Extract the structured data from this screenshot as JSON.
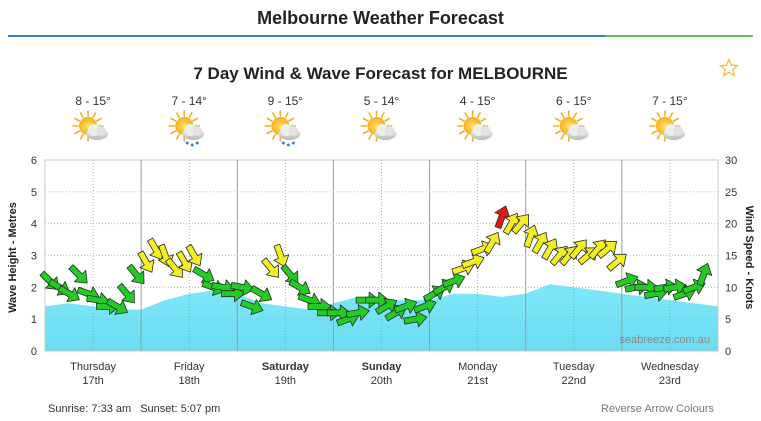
{
  "header": {
    "title": "Melbourne Weather Forecast"
  },
  "footer": {
    "sunrise": "Sunrise: 7:33 am",
    "sunset": "Sunset: 5:07 pm",
    "reverse_link": "Reverse Arrow Colours"
  },
  "chart_data": {
    "type": "area",
    "title": "7 Day Wind & Wave Forecast for MELBOURNE",
    "ylabel": "Wave Height - Metres",
    "y2label": "Wind Speed - Knots",
    "ylim": [
      0,
      6
    ],
    "y2lim": [
      0,
      30
    ],
    "yticks": [
      "0",
      "1",
      "2",
      "3",
      "4",
      "5",
      "6"
    ],
    "y2ticks": [
      "0",
      "5",
      "10",
      "15",
      "20",
      "25",
      "30"
    ],
    "watermark": "seabreeze.com.au",
    "grid": true,
    "days": [
      {
        "day": "Thursday",
        "date": "17th",
        "bold": false,
        "temp": "8 - 15°",
        "icon": "partly-cloudy-icon"
      },
      {
        "day": "Friday",
        "date": "18th",
        "bold": false,
        "temp": "7 - 14°",
        "icon": "cloudy-rain-icon"
      },
      {
        "day": "Saturday",
        "date": "19th",
        "bold": true,
        "temp": "9 - 15°",
        "icon": "cloudy-rain-icon"
      },
      {
        "day": "Sunday",
        "date": "20th",
        "bold": true,
        "temp": "5 - 14°",
        "icon": "partly-cloudy-icon"
      },
      {
        "day": "Monday",
        "date": "21st",
        "bold": false,
        "temp": "4 - 15°",
        "icon": "partly-cloudy-icon"
      },
      {
        "day": "Tuesday",
        "date": "22nd",
        "bold": false,
        "temp": "6 - 15°",
        "icon": "partly-cloudy-icon"
      },
      {
        "day": "Wednesday",
        "date": "23rd",
        "bold": false,
        "temp": "7 - 15°",
        "icon": "partly-cloudy-icon"
      }
    ],
    "wave_series": {
      "name": "Wave Height",
      "x": [
        0,
        0.25,
        0.5,
        0.75,
        1,
        1.25,
        1.5,
        1.75,
        2,
        2.25,
        2.5,
        2.75,
        3,
        3.25,
        3.5,
        3.75,
        4,
        4.25,
        4.5,
        4.75,
        5,
        5.25,
        5.5,
        5.75,
        6,
        6.25,
        6.5,
        6.75,
        7
      ],
      "values": [
        1.4,
        1.5,
        1.4,
        1.3,
        1.3,
        1.6,
        1.8,
        1.9,
        1.8,
        1.5,
        1.4,
        1.3,
        1.5,
        1.7,
        1.6,
        1.6,
        1.6,
        1.8,
        1.8,
        1.7,
        1.8,
        2.1,
        2.0,
        1.9,
        1.8,
        1.7,
        1.6,
        1.5,
        1.4
      ]
    },
    "wind_series": {
      "name": "Wind Speed",
      "unit": "knots",
      "x": [
        0.05,
        0.15,
        0.25,
        0.35,
        0.45,
        0.55,
        0.65,
        0.75,
        0.85,
        0.95,
        1.05,
        1.15,
        1.25,
        1.35,
        1.45,
        1.55,
        1.65,
        1.75,
        1.85,
        1.95,
        2.05,
        2.15,
        2.25,
        2.35,
        2.45,
        2.55,
        2.65,
        2.75,
        2.85,
        2.95,
        3.05,
        3.15,
        3.25,
        3.35,
        3.45,
        3.55,
        3.65,
        3.75,
        3.85,
        3.95,
        4.05,
        4.15,
        4.25,
        4.35,
        4.45,
        4.55,
        4.65,
        4.75,
        4.85,
        4.95,
        5.05,
        5.15,
        5.25,
        5.35,
        5.45,
        5.55,
        5.65,
        5.75,
        5.85,
        5.95,
        6.05,
        6.15,
        6.25,
        6.35,
        6.45,
        6.55,
        6.65,
        6.75,
        6.85
      ],
      "speeds": [
        11,
        10,
        9,
        12,
        9,
        8,
        7,
        7,
        9,
        12,
        14,
        16,
        15,
        13,
        14,
        15,
        12,
        10,
        10,
        9,
        10,
        7,
        9,
        13,
        15,
        12,
        10,
        8,
        7,
        6,
        6,
        5,
        6,
        8,
        8,
        7,
        6,
        7,
        5,
        7,
        9,
        10,
        11,
        13,
        14,
        16,
        17,
        21,
        20,
        20,
        18,
        17,
        16,
        15,
        15,
        16,
        15,
        16,
        16,
        14,
        11,
        10,
        10,
        9,
        10,
        10,
        9,
        10,
        12
      ],
      "directions_deg": [
        315,
        300,
        300,
        315,
        290,
        280,
        270,
        300,
        320,
        320,
        330,
        330,
        340,
        320,
        330,
        330,
        300,
        290,
        280,
        270,
        280,
        290,
        300,
        320,
        340,
        320,
        300,
        290,
        270,
        270,
        270,
        250,
        260,
        270,
        270,
        240,
        240,
        250,
        260,
        250,
        240,
        240,
        250,
        250,
        250,
        250,
        210,
        200,
        210,
        220,
        200,
        210,
        210,
        220,
        220,
        220,
        230,
        220,
        230,
        230,
        250,
        260,
        270,
        260,
        260,
        260,
        250,
        250,
        200
      ],
      "color_scale": [
        {
          "max": 12,
          "color": "#22cc22"
        },
        {
          "max": 20,
          "color": "#f2ee22"
        },
        {
          "max": 99,
          "color": "#e01818"
        }
      ]
    }
  }
}
